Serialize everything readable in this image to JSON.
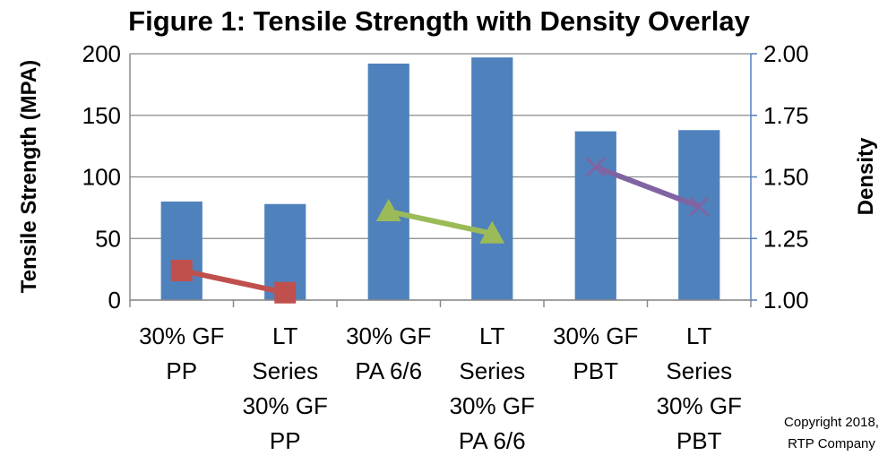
{
  "chart_data": {
    "type": "bar",
    "title": "Figure 1: Tensile Strength with Density Overlay",
    "xlabel": "",
    "ylabel": "Tensile Strength (MPA)",
    "y2label": "Density",
    "ylim": [
      0,
      200
    ],
    "y2lim": [
      1.0,
      2.0
    ],
    "yticks": [
      "0",
      "50",
      "100",
      "150",
      "200"
    ],
    "y2ticks": [
      "1.00",
      "1.25",
      "1.50",
      "1.75",
      "2.00"
    ],
    "grid": true,
    "legend": "none",
    "categories": [
      [
        "30% GF",
        "PP"
      ],
      [
        "LT",
        "Series",
        "30% GF",
        "PP"
      ],
      [
        "30% GF",
        "PA 6/6"
      ],
      [
        "LT",
        "Series",
        "30% GF",
        "PA 6/6"
      ],
      [
        "30% GF",
        "PBT"
      ],
      [
        "LT",
        "Series",
        "30% GF",
        "PBT"
      ]
    ],
    "bars": {
      "values": [
        80,
        78,
        192,
        197,
        137,
        138
      ],
      "color": "#4f81bd"
    },
    "density_series": [
      {
        "categories": [
          0,
          1
        ],
        "values": [
          1.12,
          1.03
        ],
        "color": "#c0504d",
        "marker": "square"
      },
      {
        "categories": [
          2,
          3
        ],
        "values": [
          1.36,
          1.27
        ],
        "color": "#9bbb59",
        "marker": "triangle"
      },
      {
        "categories": [
          4,
          5
        ],
        "values": [
          1.54,
          1.38
        ],
        "color": "#8064a2",
        "marker": "x"
      }
    ]
  },
  "copyright": [
    "Copyright 2018,",
    "RTP Company"
  ]
}
